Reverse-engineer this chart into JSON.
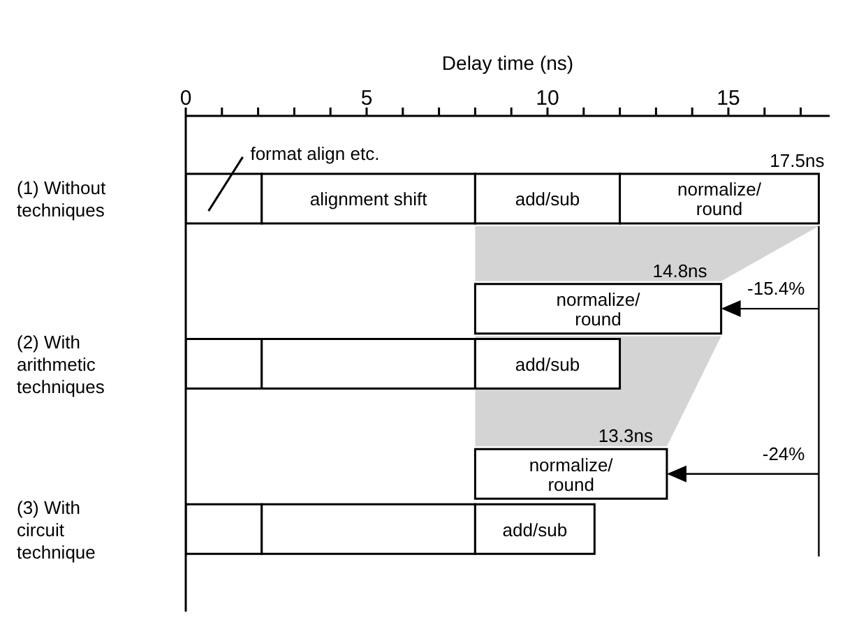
{
  "chart_data": {
    "type": "bar",
    "orientation": "horizontal",
    "xlabel": "Delay time (ns)",
    "categories": [
      null,
      "(1) Without techniques",
      null,
      null,
      "(2) With arithmetic techniques",
      null,
      null,
      "(3) With circuit technique",
      null
    ],
    "series": [
      {
        "name": "format align etc.",
        "color": "#ffffff",
        "values": [
          null,
          2.1,
          null,
          null,
          2.1,
          null,
          null,
          2.1,
          null
        ],
        "base": [
          null,
          0,
          null,
          null,
          0,
          null,
          null,
          0,
          null
        ]
      },
      {
        "name": "alignment shift",
        "color": "#ffffff",
        "values": [
          null,
          5.9,
          null,
          null,
          5.9,
          null,
          null,
          5.9,
          null
        ],
        "base": [
          null,
          2.1,
          null,
          null,
          2.1,
          null,
          null,
          2.1,
          null
        ]
      },
      {
        "name": "add/sub",
        "color": "#ffffff",
        "values": [
          null,
          4,
          null,
          null,
          4,
          null,
          null,
          3.3,
          null
        ],
        "base": [
          null,
          8,
          null,
          null,
          8,
          null,
          null,
          8,
          null
        ]
      },
      {
        "name": "normalize/round",
        "color": "#ffffff",
        "values": [
          null,
          5.5,
          null,
          6.8,
          null,
          null,
          5.3,
          null,
          null
        ],
        "base": [
          null,
          12,
          null,
          8,
          null,
          null,
          8,
          null,
          null
        ]
      }
    ],
    "xlim": [
      0,
      17.8
    ],
    "xticks": [
      0,
      {
        "value": 1,
        "label": null
      },
      {
        "value": 2,
        "label": null
      },
      {
        "value": 3,
        "label": null
      },
      {
        "value": 4,
        "label": null
      },
      5,
      {
        "value": 6,
        "label": null
      },
      {
        "value": 7,
        "label": null
      },
      {
        "value": 8,
        "label": null
      },
      {
        "value": 9,
        "label": null
      },
      10,
      {
        "value": 11,
        "label": null
      },
      {
        "value": 12,
        "label": null
      },
      {
        "value": 13,
        "label": null
      },
      {
        "value": 14,
        "label": null
      },
      15,
      {
        "value": 16,
        "label": null
      },
      {
        "value": 17,
        "label": null
      }
    ],
    "annotations": [
      "17.5ns",
      "14.8ns",
      "13.3ns",
      "-15.4%",
      "-24%"
    ],
    "ref_lines": [
      {
        "axis": "x",
        "value": 17.5
      }
    ]
  }
}
